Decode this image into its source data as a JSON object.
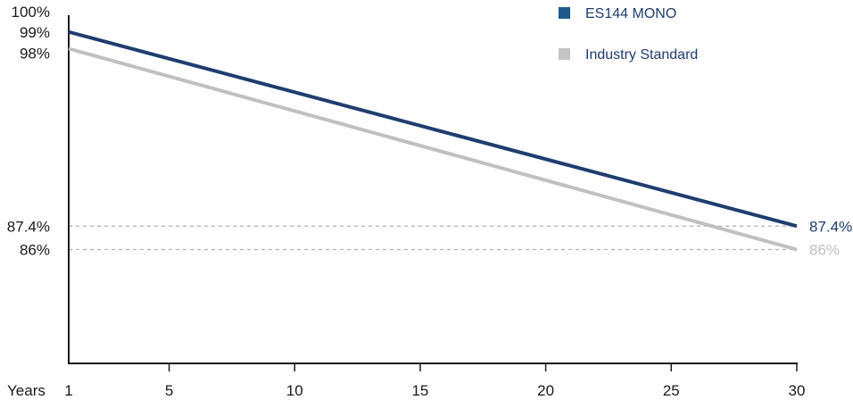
{
  "chart_data": {
    "type": "line",
    "xlabel": "Years",
    "x_ticks": [
      "1",
      "5",
      "10",
      "15",
      "20",
      "25",
      "30"
    ],
    "y_ticks": [
      "100%",
      "99%",
      "98%",
      "87.4%",
      "86%"
    ],
    "ylim": [
      79.2,
      100
    ],
    "xlim": [
      1,
      30
    ],
    "series": [
      {
        "name": "ES144 MONO",
        "x": [
          1,
          30
        ],
        "values": [
          99,
          87.4
        ],
        "color": "#1f3d6e",
        "end_label": "87.4%",
        "start_label": "99%"
      },
      {
        "name": "Industry Standard",
        "x": [
          1,
          30
        ],
        "values": [
          98,
          86
        ],
        "color": "#c0c0c0",
        "end_label": "86%"
      }
    ],
    "reference_lines": [
      87.4,
      86
    ],
    "legend": {
      "position": "top-right"
    },
    "colors": {
      "mono_legend": "#1f5a8a",
      "standard_legend": "#c4c4c4",
      "axis": "#1a1a1a",
      "grid": "#b0b0b0"
    }
  }
}
